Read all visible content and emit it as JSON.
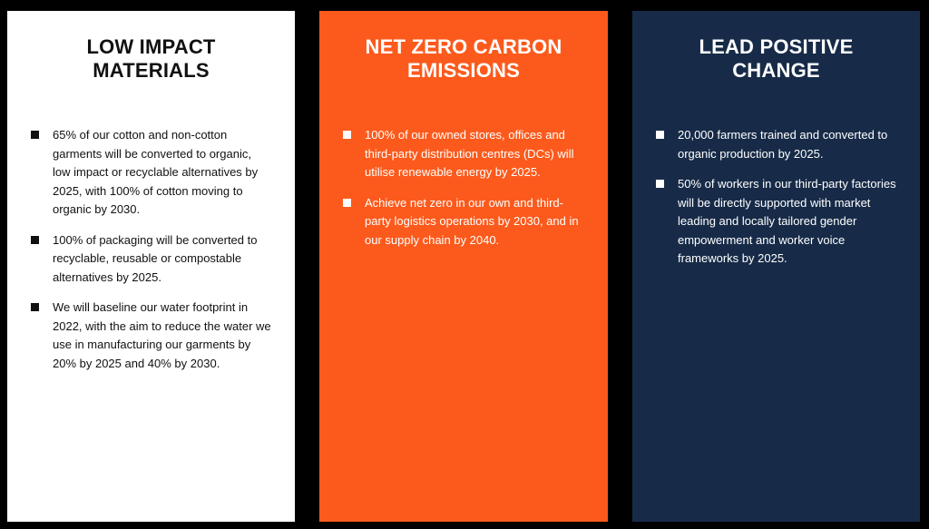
{
  "colors": {
    "background": "#000000",
    "panel_white": "#ffffff",
    "panel_orange": "#fc5a1c",
    "panel_navy": "#172b48"
  },
  "panels": [
    {
      "title": "LOW IMPACT\nMATERIALS",
      "items": [
        "65% of our cotton and non-cotton garments will be converted to organic, low impact or recyclable alternatives by 2025, with 100% of cotton moving to organic by 2030.",
        "100% of packaging will be converted to recyclable, reusable or compostable alternatives by 2025.",
        "We will baseline our water footprint in 2022, with the aim to reduce the water we use in manufacturing our garments by 20% by 2025 and 40% by 2030."
      ]
    },
    {
      "title": "NET ZERO CARBON\nEMISSIONS",
      "items": [
        "100% of our owned stores, offices and third-party distribution centres (DCs) will utilise renewable energy by 2025.",
        "Achieve net zero in our own and third-party logistics operations by 2030, and in our supply chain by 2040."
      ]
    },
    {
      "title": "LEAD POSITIVE\nCHANGE",
      "items": [
        "20,000 farmers trained and converted to organic production by 2025.",
        "50% of workers in our third-party factories will be directly supported with market leading and locally tailored gender empowerment and worker voice frameworks by 2025."
      ]
    }
  ]
}
